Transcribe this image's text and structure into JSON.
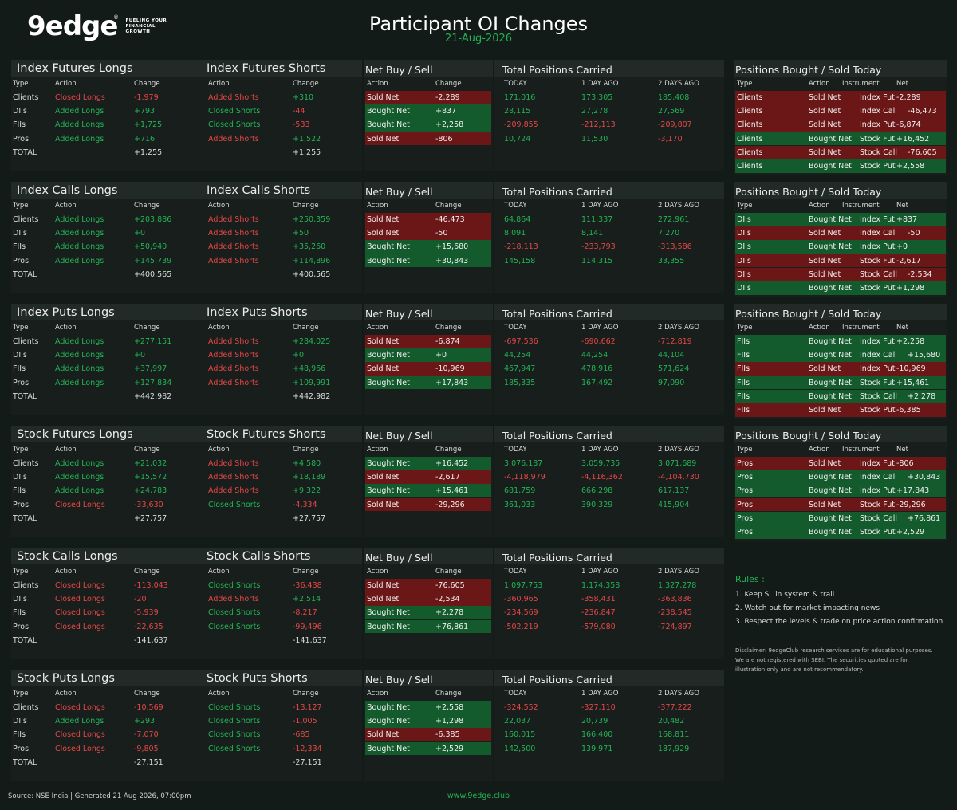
{
  "header": {
    "logo_text": "9edge",
    "logo_reg": "®",
    "logo_tagline": "FUELING YOUR FINANCIAL GROWTH",
    "title": "Participant OI Changes",
    "date": "21-Aug-2026"
  },
  "labels": {
    "type": "Type",
    "action": "Action",
    "change": "Change",
    "net_title": "Net Buy / Sell",
    "tp_title": "Total Positions Carried",
    "today": "TODAY",
    "day1": "1 DAY AGO",
    "day2": "2 DAYS AGO",
    "bs_title": "Positions Bought / Sold Today",
    "instrument": "Instrument",
    "net": "Net",
    "total": "TOTAL"
  },
  "sections": [
    {
      "long_title": "Index Futures Longs",
      "short_title": "Index Futures Shorts",
      "rows": [
        {
          "type": "Clients",
          "la": "Closed Longs",
          "lc": "-1,979",
          "sa": "Added Shorts",
          "sc": "+310",
          "na": "Sold Net",
          "nc": "-2,289",
          "t0": "171,016",
          "t1": "173,305",
          "t2": "185,408"
        },
        {
          "type": "DIIs",
          "la": "Added Longs",
          "lc": "+793",
          "sa": "Closed Shorts",
          "sc": "-44",
          "na": "Bought Net",
          "nc": "+837",
          "t0": "28,115",
          "t1": "27,278",
          "t2": "27,569"
        },
        {
          "type": "FIIs",
          "la": "Added Longs",
          "lc": "+1,725",
          "sa": "Closed Shorts",
          "sc": "-533",
          "na": "Bought Net",
          "nc": "+2,258",
          "t0": "-209,855",
          "t1": "-212,113",
          "t2": "-209,807"
        },
        {
          "type": "Pros",
          "la": "Added Longs",
          "lc": "+716",
          "sa": "Added Shorts",
          "sc": "+1,522",
          "na": "Sold Net",
          "nc": "-806",
          "t0": "10,724",
          "t1": "11,530",
          "t2": "-3,170"
        }
      ],
      "total_long": "+1,255",
      "total_short": "+1,255"
    },
    {
      "long_title": "Index Calls Longs",
      "short_title": "Index Calls Shorts",
      "rows": [
        {
          "type": "Clients",
          "la": "Added Longs",
          "lc": "+203,886",
          "sa": "Added Shorts",
          "sc": "+250,359",
          "na": "Sold Net",
          "nc": "-46,473",
          "t0": "64,864",
          "t1": "111,337",
          "t2": "272,961"
        },
        {
          "type": "DIIs",
          "la": "Added Longs",
          "lc": "+0",
          "sa": "Added Shorts",
          "sc": "+50",
          "na": "Sold Net",
          "nc": "-50",
          "t0": "8,091",
          "t1": "8,141",
          "t2": "7,270"
        },
        {
          "type": "FIIs",
          "la": "Added Longs",
          "lc": "+50,940",
          "sa": "Added Shorts",
          "sc": "+35,260",
          "na": "Bought Net",
          "nc": "+15,680",
          "t0": "-218,113",
          "t1": "-233,793",
          "t2": "-313,586"
        },
        {
          "type": "Pros",
          "la": "Added Longs",
          "lc": "+145,739",
          "sa": "Added Shorts",
          "sc": "+114,896",
          "na": "Bought Net",
          "nc": "+30,843",
          "t0": "145,158",
          "t1": "114,315",
          "t2": "33,355"
        }
      ],
      "total_long": "+400,565",
      "total_short": "+400,565"
    },
    {
      "long_title": "Index Puts Longs",
      "short_title": "Index Puts Shorts",
      "rows": [
        {
          "type": "Clients",
          "la": "Added Longs",
          "lc": "+277,151",
          "sa": "Added Shorts",
          "sc": "+284,025",
          "na": "Sold Net",
          "nc": "-6,874",
          "t0": "-697,536",
          "t1": "-690,662",
          "t2": "-712,819"
        },
        {
          "type": "DIIs",
          "la": "Added Longs",
          "lc": "+0",
          "sa": "Added Shorts",
          "sc": "+0",
          "na": "Bought Net",
          "nc": "+0",
          "t0": "44,254",
          "t1": "44,254",
          "t2": "44,104"
        },
        {
          "type": "FIIs",
          "la": "Added Longs",
          "lc": "+37,997",
          "sa": "Added Shorts",
          "sc": "+48,966",
          "na": "Sold Net",
          "nc": "-10,969",
          "t0": "467,947",
          "t1": "478,916",
          "t2": "571,624"
        },
        {
          "type": "Pros",
          "la": "Added Longs",
          "lc": "+127,834",
          "sa": "Added Shorts",
          "sc": "+109,991",
          "na": "Bought Net",
          "nc": "+17,843",
          "t0": "185,335",
          "t1": "167,492",
          "t2": "97,090"
        }
      ],
      "total_long": "+442,982",
      "total_short": "+442,982"
    },
    {
      "long_title": "Stock Futures Longs",
      "short_title": "Stock Futures Shorts",
      "rows": [
        {
          "type": "Clients",
          "la": "Added Longs",
          "lc": "+21,032",
          "sa": "Added Shorts",
          "sc": "+4,580",
          "na": "Bought Net",
          "nc": "+16,452",
          "t0": "3,076,187",
          "t1": "3,059,735",
          "t2": "3,071,689"
        },
        {
          "type": "DIIs",
          "la": "Added Longs",
          "lc": "+15,572",
          "sa": "Added Shorts",
          "sc": "+18,189",
          "na": "Sold Net",
          "nc": "-2,617",
          "t0": "-4,118,979",
          "t1": "-4,116,362",
          "t2": "-4,104,730"
        },
        {
          "type": "FIIs",
          "la": "Added Longs",
          "lc": "+24,783",
          "sa": "Added Shorts",
          "sc": "+9,322",
          "na": "Bought Net",
          "nc": "+15,461",
          "t0": "681,759",
          "t1": "666,298",
          "t2": "617,137"
        },
        {
          "type": "Pros",
          "la": "Closed Longs",
          "lc": "-33,630",
          "sa": "Closed Shorts",
          "sc": "-4,334",
          "na": "Sold Net",
          "nc": "-29,296",
          "t0": "361,033",
          "t1": "390,329",
          "t2": "415,904"
        }
      ],
      "total_long": "+27,757",
      "total_short": "+27,757"
    },
    {
      "long_title": "Stock Calls Longs",
      "short_title": "Stock Calls Shorts",
      "rows": [
        {
          "type": "Clients",
          "la": "Closed Longs",
          "lc": "-113,043",
          "sa": "Closed Shorts",
          "sc": "-36,438",
          "na": "Sold Net",
          "nc": "-76,605",
          "t0": "1,097,753",
          "t1": "1,174,358",
          "t2": "1,327,278"
        },
        {
          "type": "DIIs",
          "la": "Closed Longs",
          "lc": "-20",
          "sa": "Added Shorts",
          "sc": "+2,514",
          "na": "Sold Net",
          "nc": "-2,534",
          "t0": "-360,965",
          "t1": "-358,431",
          "t2": "-363,836"
        },
        {
          "type": "FIIs",
          "la": "Closed Longs",
          "lc": "-5,939",
          "sa": "Closed Shorts",
          "sc": "-8,217",
          "na": "Bought Net",
          "nc": "+2,278",
          "t0": "-234,569",
          "t1": "-236,847",
          "t2": "-238,545"
        },
        {
          "type": "Pros",
          "la": "Closed Longs",
          "lc": "-22,635",
          "sa": "Closed Shorts",
          "sc": "-99,496",
          "na": "Bought Net",
          "nc": "+76,861",
          "t0": "-502,219",
          "t1": "-579,080",
          "t2": "-724,897"
        }
      ],
      "total_long": "-141,637",
      "total_short": "-141,637"
    },
    {
      "long_title": "Stock Puts Longs",
      "short_title": "Stock Puts Shorts",
      "rows": [
        {
          "type": "Clients",
          "la": "Closed Longs",
          "lc": "-10,569",
          "sa": "Closed Shorts",
          "sc": "-13,127",
          "na": "Bought Net",
          "nc": "+2,558",
          "t0": "-324,552",
          "t1": "-327,110",
          "t2": "-377,222"
        },
        {
          "type": "DIIs",
          "la": "Added Longs",
          "lc": "+293",
          "sa": "Closed Shorts",
          "sc": "-1,005",
          "na": "Bought Net",
          "nc": "+1,298",
          "t0": "22,037",
          "t1": "20,739",
          "t2": "20,482"
        },
        {
          "type": "FIIs",
          "la": "Closed Longs",
          "lc": "-7,070",
          "sa": "Closed Shorts",
          "sc": "-685",
          "na": "Sold Net",
          "nc": "-6,385",
          "t0": "160,015",
          "t1": "166,400",
          "t2": "168,811"
        },
        {
          "type": "Pros",
          "la": "Closed Longs",
          "lc": "-9,805",
          "sa": "Closed Shorts",
          "sc": "-12,334",
          "na": "Bought Net",
          "nc": "+2,529",
          "t0": "142,500",
          "t1": "139,971",
          "t2": "187,929"
        }
      ],
      "total_long": "-27,151",
      "total_short": "-27,151"
    }
  ],
  "bought_sold": [
    [
      {
        "type": "Clients",
        "action": "Sold Net",
        "inst": "Index Fut",
        "net": "-2,289"
      },
      {
        "type": "Clients",
        "action": "Sold Net",
        "inst": "Index Call",
        "net": "-46,473"
      },
      {
        "type": "Clients",
        "action": "Sold Net",
        "inst": "Index Put",
        "net": "-6,874"
      },
      {
        "type": "Clients",
        "action": "Bought Net",
        "inst": "Stock Fut",
        "net": "+16,452"
      },
      {
        "type": "Clients",
        "action": "Sold Net",
        "inst": "Stock Call",
        "net": "-76,605"
      },
      {
        "type": "Clients",
        "action": "Bought Net",
        "inst": "Stock Put",
        "net": "+2,558"
      }
    ],
    [
      {
        "type": "DIIs",
        "action": "Bought Net",
        "inst": "Index Fut",
        "net": "+837"
      },
      {
        "type": "DIIs",
        "action": "Sold Net",
        "inst": "Index Call",
        "net": "-50"
      },
      {
        "type": "DIIs",
        "action": "Bought Net",
        "inst": "Index Put",
        "net": "+0"
      },
      {
        "type": "DIIs",
        "action": "Sold Net",
        "inst": "Stock Fut",
        "net": "-2,617"
      },
      {
        "type": "DIIs",
        "action": "Sold Net",
        "inst": "Stock Call",
        "net": "-2,534"
      },
      {
        "type": "DIIs",
        "action": "Bought Net",
        "inst": "Stock Put",
        "net": "+1,298"
      }
    ],
    [
      {
        "type": "FIIs",
        "action": "Bought Net",
        "inst": "Index Fut",
        "net": "+2,258"
      },
      {
        "type": "FIIs",
        "action": "Bought Net",
        "inst": "Index Call",
        "net": "+15,680"
      },
      {
        "type": "FIIs",
        "action": "Sold Net",
        "inst": "Index Put",
        "net": "-10,969"
      },
      {
        "type": "FIIs",
        "action": "Bought Net",
        "inst": "Stock Fut",
        "net": "+15,461"
      },
      {
        "type": "FIIs",
        "action": "Bought Net",
        "inst": "Stock Call",
        "net": "+2,278"
      },
      {
        "type": "FIIs",
        "action": "Sold Net",
        "inst": "Stock Put",
        "net": "-6,385"
      }
    ],
    [
      {
        "type": "Pros",
        "action": "Sold Net",
        "inst": "Index Fut",
        "net": "-806"
      },
      {
        "type": "Pros",
        "action": "Bought Net",
        "inst": "Index Call",
        "net": "+30,843"
      },
      {
        "type": "Pros",
        "action": "Bought Net",
        "inst": "Index Put",
        "net": "+17,843"
      },
      {
        "type": "Pros",
        "action": "Sold Net",
        "inst": "Stock Fut",
        "net": "-29,296"
      },
      {
        "type": "Pros",
        "action": "Bought Net",
        "inst": "Stock Call",
        "net": "+76,861"
      },
      {
        "type": "Pros",
        "action": "Bought Net",
        "inst": "Stock Put",
        "net": "+2,529"
      }
    ]
  ],
  "rules": {
    "title": "Rules :",
    "items": [
      "1. Keep SL in system & trail",
      "2. Watch out for market impacting news",
      "3. Respect the levels & trade on price action confirmation"
    ]
  },
  "disclaimer": "Disclaimer: 9edgeClub research services are for educational purposes. We are not registered with SEBI. The securities quoted are for illustration only and are not recommendatory.",
  "footer": {
    "source": "Source: NSE India | Generated 21 Aug 2026, 07:00pm",
    "url": "www.9edge.club"
  },
  "colors": {
    "bg": "#131b18",
    "green": "#22b455",
    "red": "#e84747",
    "green_fill": "#135a2d",
    "red_fill": "#6c1717"
  }
}
